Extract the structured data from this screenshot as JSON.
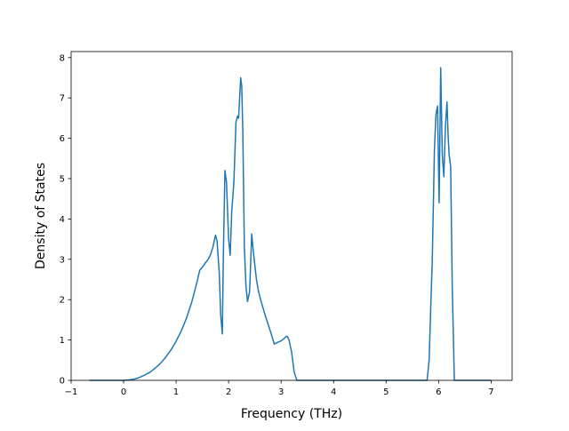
{
  "chart_data": {
    "type": "line",
    "title": "",
    "xlabel": "Frequency (THz)",
    "ylabel": "Density of States",
    "xlim": [
      -1,
      7.4
    ],
    "ylim": [
      0,
      8.15
    ],
    "xticks": [
      -1,
      0,
      1,
      2,
      3,
      4,
      5,
      6,
      7
    ],
    "yticks": [
      0,
      1,
      2,
      3,
      4,
      5,
      6,
      7,
      8
    ],
    "grid": false,
    "legend": "none",
    "series": [
      {
        "color": "#1f77b4",
        "x": [
          -0.65,
          -0.5,
          -0.2,
          0.0,
          0.1,
          0.2,
          0.3,
          0.4,
          0.5,
          0.6,
          0.7,
          0.8,
          0.9,
          1.0,
          1.1,
          1.2,
          1.3,
          1.4,
          1.45,
          1.5,
          1.55,
          1.6,
          1.65,
          1.7,
          1.75,
          1.78,
          1.82,
          1.85,
          1.88,
          1.9,
          1.93,
          1.96,
          2.0,
          2.03,
          2.06,
          2.1,
          2.14,
          2.17,
          2.19,
          2.21,
          2.23,
          2.25,
          2.27,
          2.3,
          2.33,
          2.36,
          2.4,
          2.44,
          2.47,
          2.5,
          2.53,
          2.57,
          2.62,
          2.7,
          2.8,
          2.87,
          2.9,
          3.0,
          3.05,
          3.1,
          3.12,
          3.15,
          3.2,
          3.25,
          3.3,
          3.5,
          4.0,
          5.0,
          5.6,
          5.78,
          5.82,
          5.85,
          5.88,
          5.92,
          5.95,
          5.98,
          6.01,
          6.04,
          6.07,
          6.1,
          6.13,
          6.16,
          6.18,
          6.2,
          6.23,
          6.26,
          6.3,
          6.35,
          6.4,
          7.0
        ],
        "y": [
          0,
          0,
          0,
          0,
          0.01,
          0.03,
          0.07,
          0.13,
          0.2,
          0.3,
          0.42,
          0.57,
          0.75,
          0.97,
          1.23,
          1.55,
          1.95,
          2.45,
          2.73,
          2.8,
          2.9,
          2.98,
          3.1,
          3.3,
          3.6,
          3.45,
          2.7,
          1.6,
          1.15,
          3.1,
          5.2,
          4.9,
          3.5,
          3.1,
          4.2,
          4.9,
          6.4,
          6.55,
          6.5,
          7.0,
          7.5,
          7.3,
          6.2,
          3.3,
          2.35,
          1.95,
          2.2,
          3.63,
          3.2,
          2.85,
          2.5,
          2.2,
          1.95,
          1.6,
          1.2,
          0.9,
          0.92,
          0.98,
          1.03,
          1.09,
          1.09,
          1.0,
          0.7,
          0.2,
          0,
          0,
          0,
          0,
          0,
          0,
          0.5,
          1.8,
          3.0,
          5.7,
          6.6,
          6.8,
          4.4,
          7.75,
          5.6,
          5.05,
          6.3,
          6.9,
          6.1,
          5.6,
          5.3,
          2.3,
          0,
          0,
          0,
          0
        ]
      }
    ]
  }
}
